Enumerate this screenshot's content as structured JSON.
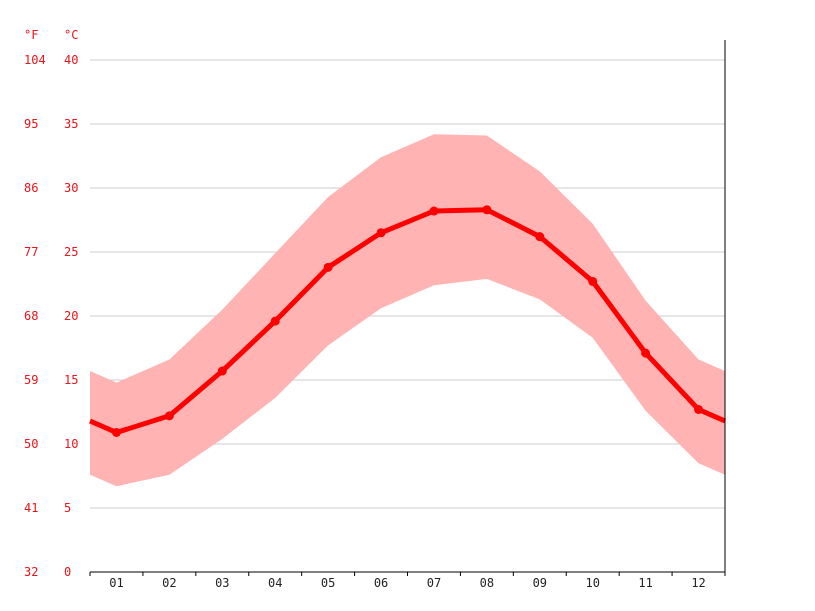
{
  "chart_data": {
    "type": "area",
    "title": "",
    "xlabel": "",
    "ylabel": "",
    "categories": [
      "01",
      "02",
      "03",
      "04",
      "05",
      "06",
      "07",
      "08",
      "09",
      "10",
      "11",
      "12"
    ],
    "units": {
      "left": "°F",
      "right": "°C"
    },
    "yticks_c": [
      0,
      5,
      10,
      15,
      20,
      25,
      30,
      35,
      40
    ],
    "yticks_f": [
      32,
      41,
      50,
      59,
      68,
      77,
      86,
      95,
      104
    ],
    "ylim": [
      0,
      40
    ],
    "grid": true,
    "series": [
      {
        "values": [
          10.9,
          12.2,
          15.7,
          19.6,
          23.8,
          26.5,
          28.2,
          28.3,
          26.2,
          22.7,
          17.1,
          12.7
        ]
      },
      {
        "values": [
          14.8,
          16.6,
          20.5,
          24.9,
          29.3,
          32.4,
          34.2,
          34.1,
          31.3,
          27.2,
          21.2,
          16.6
        ]
      },
      {
        "values": [
          6.7,
          7.6,
          10.4,
          13.6,
          17.7,
          20.6,
          22.4,
          22.9,
          21.3,
          18.3,
          12.6,
          8.5
        ]
      }
    ],
    "colors": {
      "line": "#ff0000",
      "band": "#ffb3b3",
      "grid": "#cccccc",
      "label": "#e8141a"
    }
  }
}
